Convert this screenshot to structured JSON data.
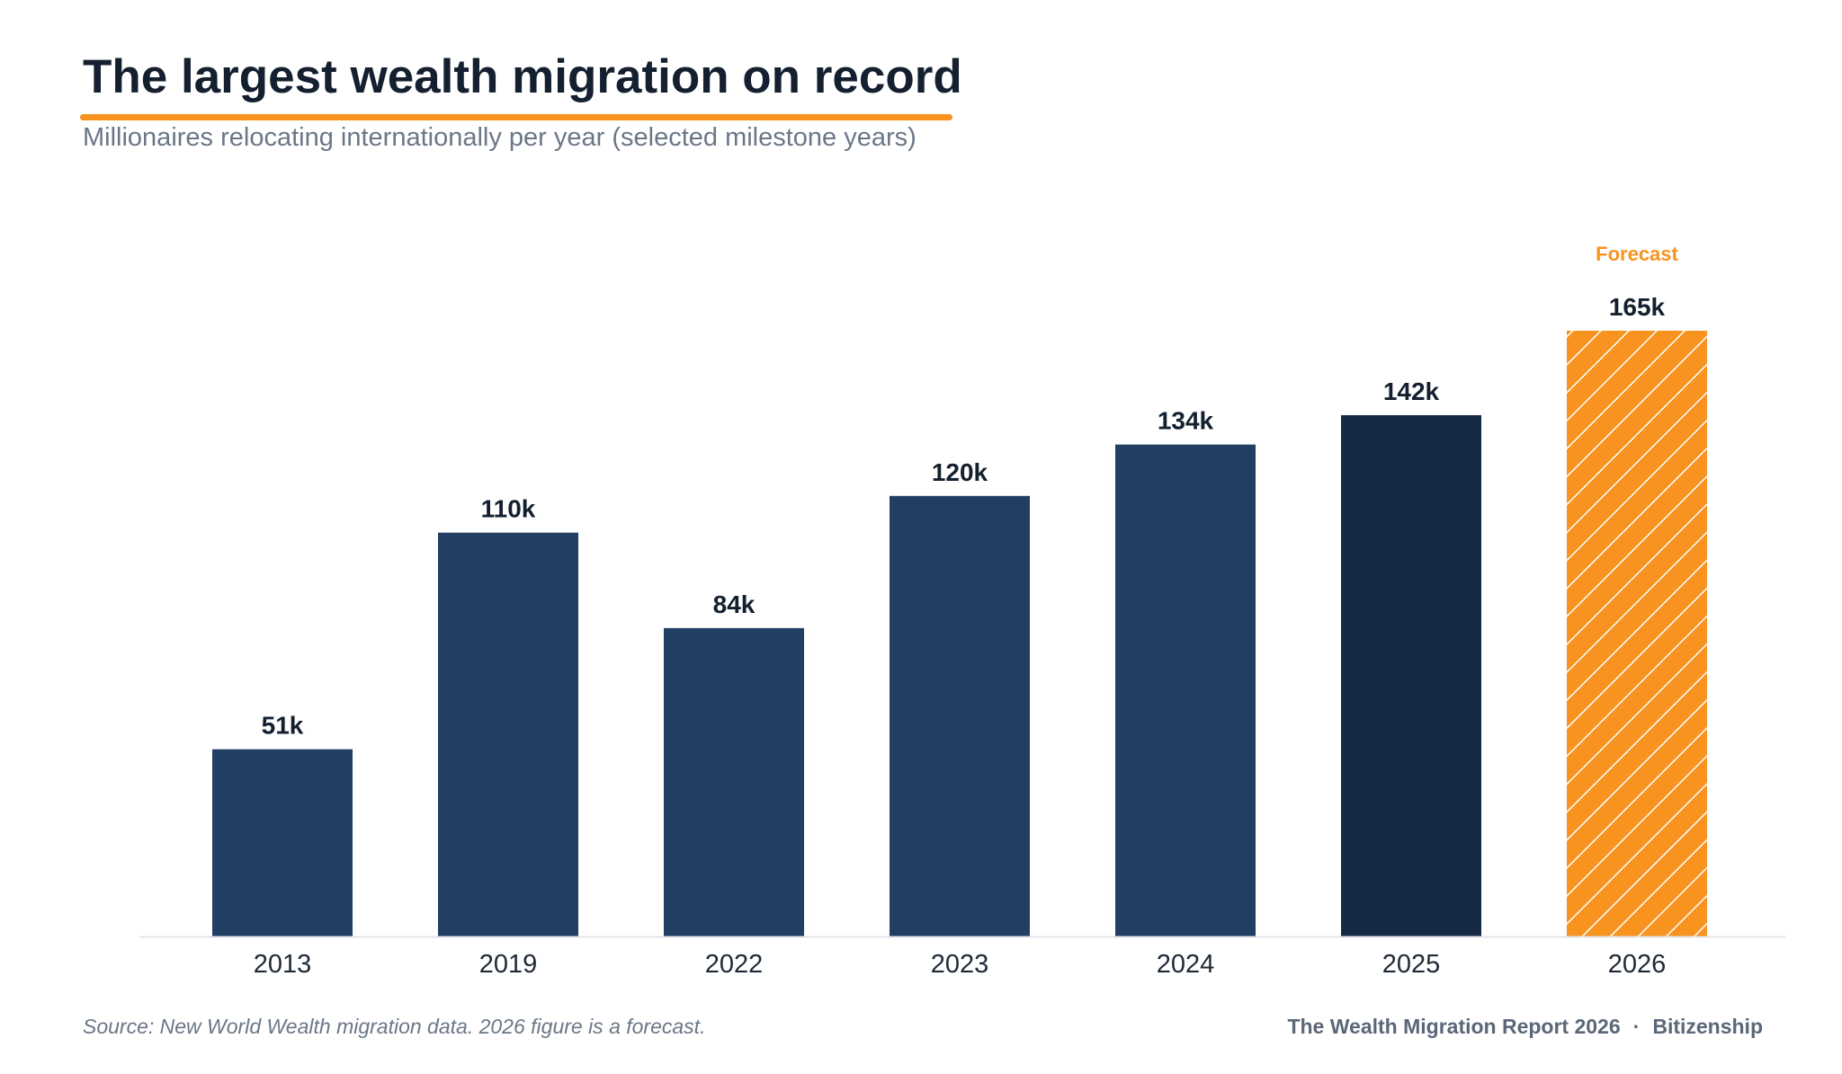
{
  "header": {
    "title": "The largest wealth migration on record",
    "subtitle": "Millionaires relocating internationally per year (selected milestone years)"
  },
  "footer": {
    "source": "Source: New World Wealth migration data. 2026 figure is a forecast.",
    "report": "The Wealth Migration Report 2026",
    "separator": "·",
    "brand": "Bitizenship"
  },
  "colors": {
    "bar": "#213f62",
    "bar_latest": "#162a47",
    "forecast": "#f7931e",
    "hatch": "#ffffff",
    "value_label": "#14202f",
    "tick_label": "#1f2a37",
    "axis": "#e2e5ea",
    "accent_rule": "#f7931e"
  },
  "chart_data": {
    "type": "bar",
    "title": "The largest wealth migration on record",
    "subtitle": "Millionaires relocating internationally per year (selected milestone years)",
    "categories": [
      "2013",
      "2019",
      "2022",
      "2023",
      "2024",
      "2025",
      "2026"
    ],
    "values": [
      51000,
      110000,
      84000,
      120000,
      134000,
      142000,
      165000
    ],
    "value_labels": [
      "51k",
      "110k",
      "84k",
      "120k",
      "134k",
      "142k",
      "165k"
    ],
    "forecast_category": "2026",
    "forecast_label": "Forecast",
    "highlight_category": "2025",
    "xlabel": "",
    "ylabel": "",
    "ylim": [
      0,
      165000
    ],
    "grid": false,
    "legend": "none"
  }
}
